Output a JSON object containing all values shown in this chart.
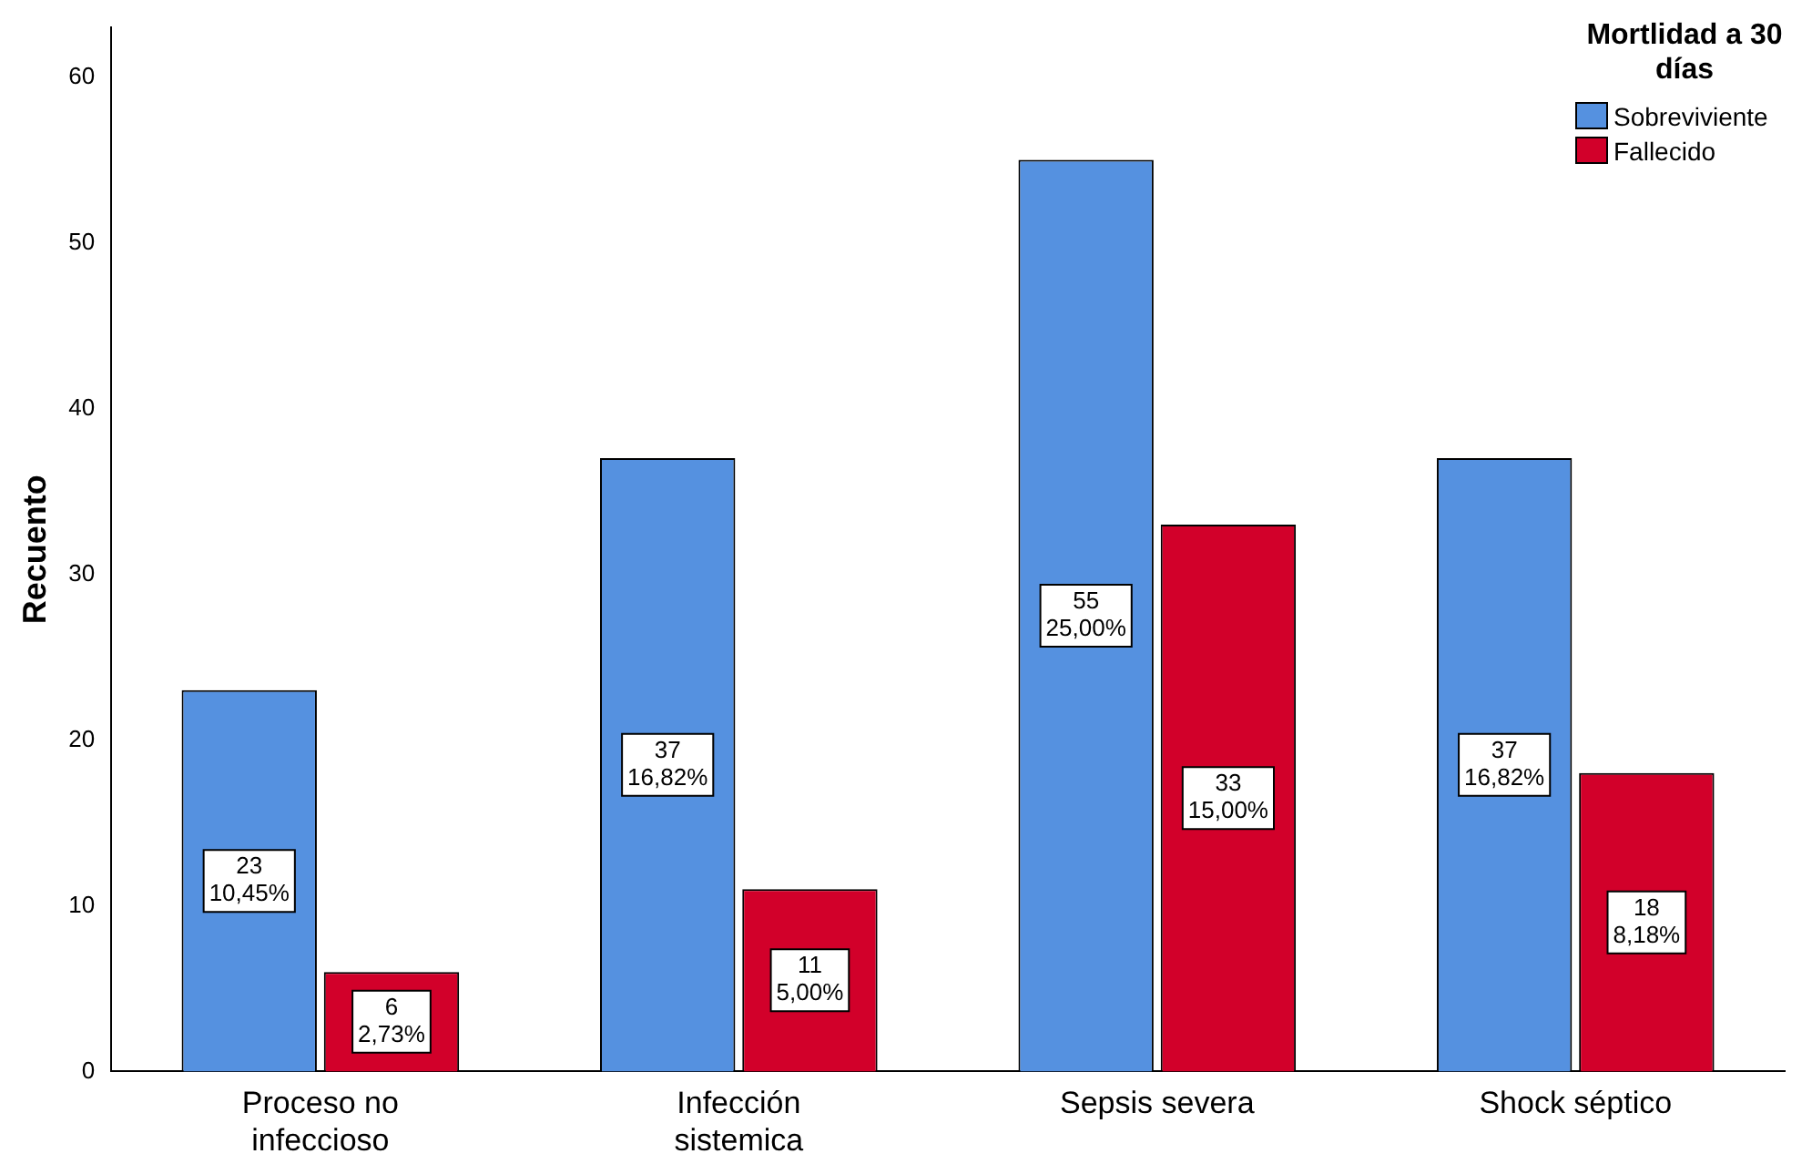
{
  "chart_data": {
    "type": "bar",
    "ylabel": "Recuento",
    "legend_title": "Mortlidad a 30 días",
    "legend": "top right",
    "grid": false,
    "categories": [
      "Proceso no infeccioso",
      "Infección sistemica",
      "Sepsis severa",
      "Shock séptico"
    ],
    "ylim": [
      0,
      63
    ],
    "yticks": [
      0,
      10,
      20,
      30,
      40,
      50,
      60
    ],
    "series": [
      {
        "name": "Sobreviviente",
        "color": "#5591e0",
        "values": [
          23,
          37,
          55,
          37
        ],
        "value_labels": [
          "23\n10,45%",
          "37\n16,82%",
          "55\n25,00%",
          "37\n16,82%"
        ]
      },
      {
        "name": "Fallecido",
        "color": "#d2002a",
        "values": [
          6,
          11,
          33,
          18
        ],
        "value_labels": [
          "6\n2,73%",
          "11\n5,00%",
          "33\n15,00%",
          "18\n8,18%"
        ]
      }
    ]
  }
}
